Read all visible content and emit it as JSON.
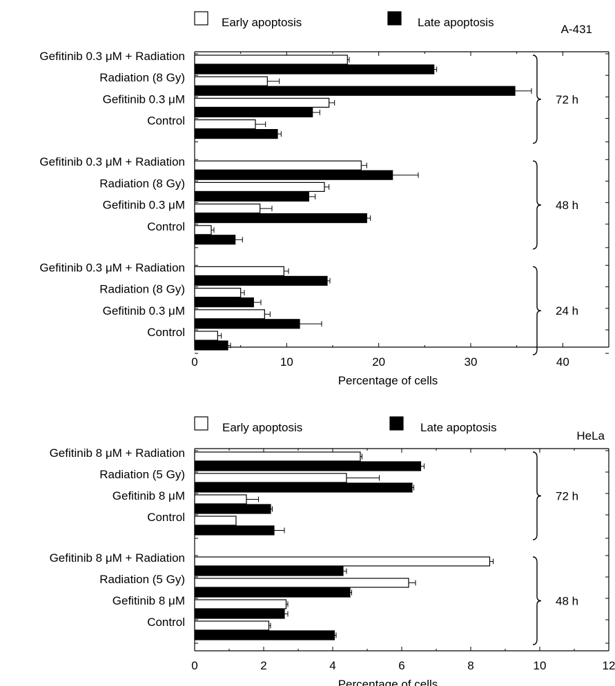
{
  "chart_data": [
    {
      "type": "bar",
      "orientation": "horizontal",
      "panel_label": "A-431",
      "xlabel": "Percentage of cells",
      "xlim": [
        0,
        45
      ],
      "xticks": [
        0,
        10,
        20,
        30,
        40
      ],
      "legend": [
        {
          "name": "Early apoptosis",
          "color": "#ffffff"
        },
        {
          "name": "Late apoptosis",
          "color": "#000000"
        }
      ],
      "groups": [
        {
          "label": "72 h",
          "categories": [
            "Gefitinib 0.3 μM + Radiation",
            "Radiation (8 Gy)",
            "Gefitinib 0.3 μM",
            "Control"
          ],
          "series": [
            {
              "name": "Early apoptosis",
              "values": [
                16.6,
                7.9,
                14.6,
                6.6
              ],
              "errors": [
                0.2,
                1.3,
                0.6,
                1.1
              ]
            },
            {
              "name": "Late apoptosis",
              "values": [
                26.0,
                34.8,
                12.8,
                9.0
              ],
              "errors": [
                0.3,
                1.8,
                0.8,
                0.4
              ]
            }
          ]
        },
        {
          "label": "48 h",
          "categories": [
            "Gefitinib 0.3 μM + Radiation",
            "Radiation (8 Gy)",
            "Gefitinib 0.3 μM",
            "Control"
          ],
          "series": [
            {
              "name": "Early apoptosis",
              "values": [
                18.1,
                14.1,
                7.1,
                1.8
              ],
              "errors": [
                0.6,
                0.5,
                1.3,
                0.3
              ]
            },
            {
              "name": "Late apoptosis",
              "values": [
                21.5,
                12.4,
                18.7,
                4.4
              ],
              "errors": [
                2.8,
                0.7,
                0.4,
                0.8
              ]
            }
          ]
        },
        {
          "label": "24 h",
          "categories": [
            "Gefitinib 0.3 μM + Radiation",
            "Radiation (8 Gy)",
            "Gefitinib 0.3 μM",
            "Control"
          ],
          "series": [
            {
              "name": "Early apoptosis",
              "values": [
                9.7,
                5.0,
                7.6,
                2.5
              ],
              "errors": [
                0.5,
                0.4,
                0.6,
                0.4
              ]
            },
            {
              "name": "Late apoptosis",
              "values": [
                14.4,
                6.4,
                11.4,
                3.6
              ],
              "errors": [
                0.3,
                0.8,
                2.4,
                0.3
              ]
            }
          ]
        }
      ]
    },
    {
      "type": "bar",
      "orientation": "horizontal",
      "panel_label": "HeLa",
      "xlabel": "Percentage of cells",
      "xlim": [
        0,
        12
      ],
      "xticks": [
        0,
        2,
        4,
        6,
        8,
        10,
        12
      ],
      "legend": [
        {
          "name": "Early apoptosis",
          "color": "#ffffff"
        },
        {
          "name": "Late apoptosis",
          "color": "#000000"
        }
      ],
      "groups": [
        {
          "label": "72 h",
          "categories": [
            "Gefitinib 8 μM + Radiation",
            "Radiation (5 Gy)",
            "Gefitinib 8 μM",
            "Control"
          ],
          "series": [
            {
              "name": "Early apoptosis",
              "values": [
                4.8,
                4.4,
                1.5,
                1.2
              ],
              "errors": [
                0.05,
                0.95,
                0.35,
                0.0
              ]
            },
            {
              "name": "Late apoptosis",
              "values": [
                6.55,
                6.3,
                2.2,
                2.3
              ],
              "errors": [
                0.1,
                0.05,
                0.05,
                0.3
              ]
            }
          ]
        },
        {
          "label": "48 h",
          "categories": [
            "Gefitinib 8 μM + Radiation",
            "Radiation (5 Gy)",
            "Gefitinib 8 μM",
            "Control"
          ],
          "series": [
            {
              "name": "Early apoptosis",
              "values": [
                8.55,
                6.2,
                2.65,
                2.15
              ],
              "errors": [
                0.1,
                0.2,
                0.05,
                0.05
              ]
            },
            {
              "name": "Late apoptosis",
              "values": [
                4.3,
                4.5,
                2.6,
                4.05
              ],
              "errors": [
                0.1,
                0.05,
                0.1,
                0.05
              ]
            }
          ]
        }
      ]
    }
  ]
}
